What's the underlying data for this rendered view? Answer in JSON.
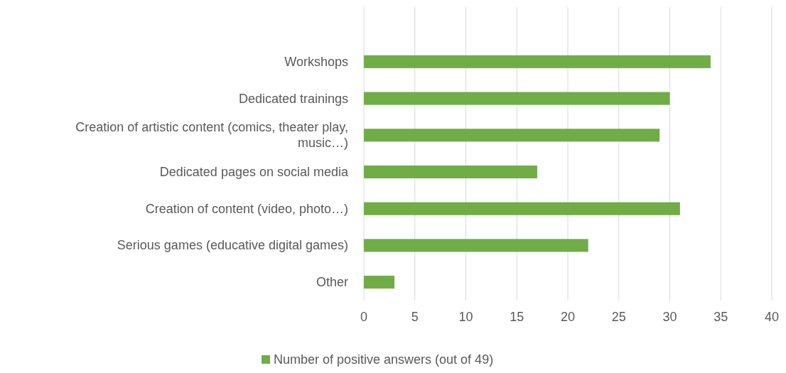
{
  "chart_data": {
    "type": "bar",
    "orientation": "horizontal",
    "categories": [
      "Workshops",
      "Dedicated trainings",
      "Creation of artistic content (comics, theater play, music…)",
      "Dedicated pages on social media",
      "Creation of content (video, photo…)",
      "Serious games (educative digital games)",
      "Other"
    ],
    "series": [
      {
        "name": "Number of positive answers (out of 49)",
        "color": "#70ad47",
        "values": [
          34,
          30,
          29,
          17,
          31,
          22,
          3
        ]
      }
    ],
    "xlim": [
      0,
      40
    ],
    "xticks": [
      0,
      5,
      10,
      15,
      20,
      25,
      30,
      35,
      40
    ],
    "grid": "x",
    "legend": "bottom"
  }
}
